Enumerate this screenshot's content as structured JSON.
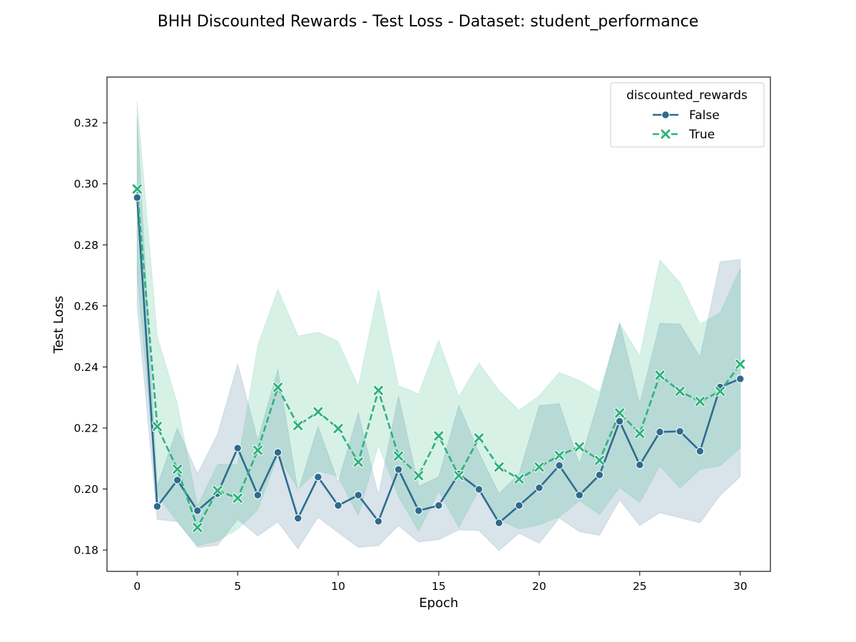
{
  "chart_data": {
    "type": "line",
    "title": "BHH Discounted Rewards - Test Loss - Dataset: student_performance",
    "xlabel": "Epoch",
    "ylabel": "Test Loss",
    "xlim": [
      -1.5,
      31.5
    ],
    "ylim": [
      0.173,
      0.335
    ],
    "xticks": [
      0,
      5,
      10,
      15,
      20,
      25,
      30
    ],
    "yticks": [
      0.18,
      0.2,
      0.22,
      0.24,
      0.26,
      0.28,
      0.3,
      0.32
    ],
    "ytick_labels": [
      "0.18",
      "0.20",
      "0.22",
      "0.24",
      "0.26",
      "0.28",
      "0.30",
      "0.32"
    ],
    "grid": false,
    "legend": {
      "title": "discounted_rewards",
      "placement": "top-right"
    },
    "x": [
      0,
      1,
      2,
      3,
      4,
      5,
      6,
      7,
      8,
      9,
      10,
      11,
      12,
      13,
      14,
      15,
      16,
      17,
      18,
      19,
      20,
      21,
      22,
      23,
      24,
      25,
      26,
      27,
      28,
      29,
      30
    ],
    "series": [
      {
        "name": "False",
        "color": "#2e6b8e",
        "marker": "circle",
        "linestyle": "solid",
        "values": [
          0.2955,
          0.1943,
          0.2029,
          0.1929,
          0.1985,
          0.2134,
          0.198,
          0.212,
          0.1904,
          0.2039,
          0.1946,
          0.198,
          0.1894,
          0.2064,
          0.1929,
          0.1946,
          0.2049,
          0.1999,
          0.1889,
          0.1946,
          0.2004,
          0.2077,
          0.198,
          0.2046,
          0.2222,
          0.2079,
          0.2187,
          0.2189,
          0.2124,
          0.2334,
          0.2361
        ],
        "ci_lower": [
          0.26,
          0.19,
          0.1893,
          0.1809,
          0.1815,
          0.1901,
          0.1846,
          0.1892,
          0.1804,
          0.1907,
          0.1857,
          0.1809,
          0.1814,
          0.188,
          0.1826,
          0.1834,
          0.1866,
          0.1864,
          0.1798,
          0.1855,
          0.1822,
          0.1905,
          0.186,
          0.1848,
          0.1964,
          0.188,
          0.1922,
          0.1906,
          0.1889,
          0.1979,
          0.204
        ],
        "ci_upper": [
          0.322,
          0.201,
          0.22,
          0.205,
          0.218,
          0.241,
          0.216,
          0.2393,
          0.1991,
          0.2205,
          0.2023,
          0.225,
          0.198,
          0.2306,
          0.2009,
          0.204,
          0.2275,
          0.212,
          0.1985,
          0.205,
          0.2273,
          0.228,
          0.2082,
          0.23,
          0.2545,
          0.228,
          0.2543,
          0.2541,
          0.2433,
          0.2745,
          0.2752
        ]
      },
      {
        "name": "True",
        "color": "#2db27d",
        "marker": "x",
        "linestyle": "dashed",
        "values": [
          0.2983,
          0.2205,
          0.2065,
          0.1874,
          0.1995,
          0.197,
          0.2127,
          0.2333,
          0.2208,
          0.2253,
          0.2198,
          0.2088,
          0.2323,
          0.2108,
          0.2044,
          0.2174,
          0.2044,
          0.2167,
          0.2072,
          0.2033,
          0.2072,
          0.211,
          0.2138,
          0.2094,
          0.2249,
          0.2182,
          0.2373,
          0.232,
          0.2287,
          0.232,
          0.2409
        ],
        "ci_lower": [
          0.27,
          0.198,
          0.1893,
          0.1814,
          0.183,
          0.1868,
          0.1932,
          0.211,
          0.2,
          0.206,
          0.204,
          0.1913,
          0.2143,
          0.1975,
          0.1862,
          0.1992,
          0.1874,
          0.1997,
          0.19,
          0.1869,
          0.1883,
          0.1908,
          0.1962,
          0.1916,
          0.2005,
          0.1955,
          0.2075,
          0.2003,
          0.2064,
          0.2076,
          0.2134
        ],
        "ci_upper": [
          0.327,
          0.25,
          0.228,
          0.1945,
          0.208,
          0.208,
          0.247,
          0.2655,
          0.2501,
          0.2514,
          0.2484,
          0.2336,
          0.2654,
          0.2339,
          0.2312,
          0.2488,
          0.2303,
          0.2413,
          0.2323,
          0.2258,
          0.2306,
          0.2382,
          0.2356,
          0.2317,
          0.2543,
          0.2436,
          0.2751,
          0.2677,
          0.2541,
          0.2577,
          0.2723
        ]
      }
    ]
  }
}
